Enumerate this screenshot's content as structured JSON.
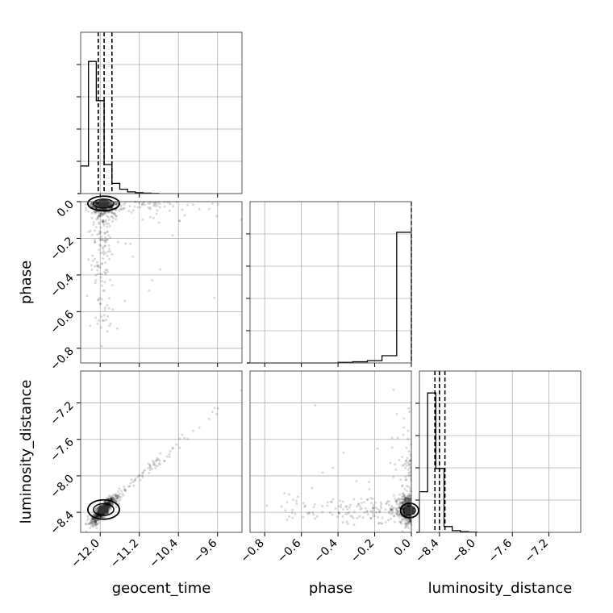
{
  "chart_data": {
    "type": "corner",
    "parameters": [
      "geocent_time",
      "phase",
      "luminosity_distance"
    ],
    "axis_labels": {
      "x": [
        "geocent_time",
        "phase",
        "luminosity_distance"
      ],
      "y": [
        "phase",
        "luminosity_distance"
      ]
    },
    "ranges": {
      "geocent_time": [
        -12.4,
        -9.1
      ],
      "phase": [
        -0.88,
        0.0
      ],
      "luminosity_distance": [
        -8.62,
        -6.85
      ]
    },
    "ticks": {
      "geocent_time": [
        -12.0,
        -11.2,
        -10.4,
        -9.6
      ],
      "phase": [
        -0.8,
        -0.6,
        -0.4,
        -0.2,
        0.0
      ],
      "luminosity_distance": [
        -8.4,
        -8.0,
        -7.6,
        -7.2
      ]
    },
    "tick_labels": {
      "geocent_time": [
        "−12.0",
        "−11.2",
        "−10.4",
        "−9.6"
      ],
      "phase": [
        "−0.8",
        "−0.6",
        "−0.4",
        "−0.2",
        "0.0"
      ],
      "luminosity_distance": [
        "−8.4",
        "−8.0",
        "−7.6",
        "−7.2"
      ]
    },
    "grid": true,
    "quantiles": {
      "geocent_time": [
        -12.04,
        -11.92,
        -11.76
      ],
      "phase": [
        0.0
      ],
      "luminosity_distance": [
        -8.45,
        -8.4,
        -8.34
      ]
    },
    "histograms": {
      "geocent_time": {
        "bins": [
          -12.4,
          -12.24,
          -12.08,
          -11.92,
          -11.76,
          -11.6,
          -11.44,
          -11.28,
          -11.12,
          -10.96,
          -10.8
        ],
        "counts": [
          0.19,
          0.91,
          0.64,
          0.2,
          0.07,
          0.03,
          0.012,
          0.006,
          0.003,
          0.001
        ]
      },
      "phase": {
        "bins": [
          -0.88,
          -0.8,
          -0.72,
          -0.64,
          -0.56,
          -0.48,
          -0.4,
          -0.32,
          -0.24,
          -0.16,
          -0.08,
          0.0
        ],
        "counts": [
          0.0,
          0.0,
          0.0,
          0.0,
          0.0,
          0.0,
          0.004,
          0.008,
          0.016,
          0.05,
          0.9
        ]
      },
      "luminosity_distance": {
        "bins": [
          -8.62,
          -8.53,
          -8.44,
          -8.35,
          -8.26,
          -8.17,
          -8.08,
          -7.99
        ],
        "counts": [
          0.28,
          0.96,
          0.44,
          0.04,
          0.012,
          0.005,
          0.002
        ]
      }
    },
    "scatter_trend": "geocent_time and luminosity_distance strongly correlated; phase concentrated near 0.0"
  }
}
